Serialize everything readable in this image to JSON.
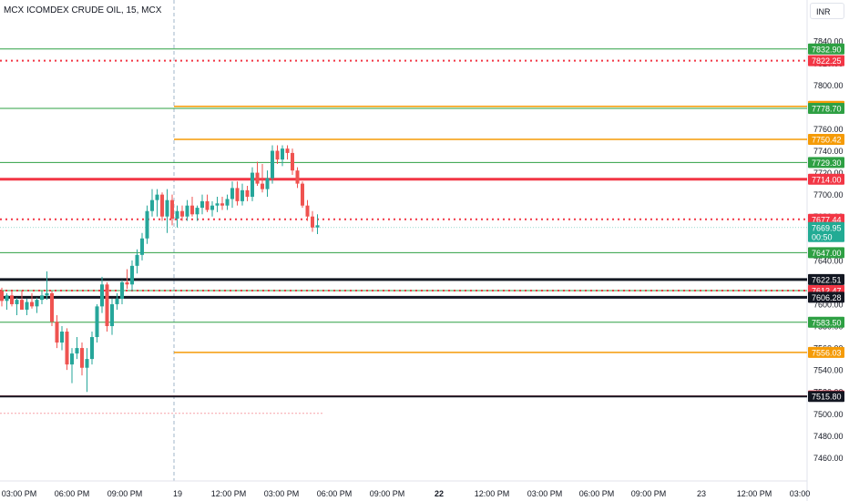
{
  "header": {
    "title": "MCX ICOMDEX CRUDE OIL, 15, MCX",
    "currency": "INR"
  },
  "colors": {
    "green": "#2ea043",
    "red": "#f23645",
    "orange": "#f59b07",
    "black": "#131722",
    "teal": "#22ab94",
    "up_candle": "#26a69a",
    "down_candle": "#ef5350",
    "axis_text": "#131722"
  },
  "chart_data": {
    "type": "candlestick",
    "ylim": [
      7452,
      7846
    ],
    "y_ticks": [
      "7840.00",
      "7820.00",
      "7800.00",
      "7780.00",
      "7760.00",
      "7740.00",
      "7720.00",
      "7700.00",
      "7680.00",
      "7660.00",
      "7640.00",
      "7620.00",
      "7600.00",
      "7580.00",
      "7560.00",
      "7540.00",
      "7520.00",
      "7500.00",
      "7480.00",
      "7460.00"
    ],
    "x_ticks": [
      {
        "label": "03:00 PM",
        "bold": false
      },
      {
        "label": "06:00 PM",
        "bold": false
      },
      {
        "label": "09:00 PM",
        "bold": false
      },
      {
        "label": "19",
        "bold": false
      },
      {
        "label": "12:00 PM",
        "bold": false
      },
      {
        "label": "03:00 PM",
        "bold": false
      },
      {
        "label": "06:00 PM",
        "bold": false
      },
      {
        "label": "09:00 PM",
        "bold": false
      },
      {
        "label": "22",
        "bold": true
      },
      {
        "label": "12:00 PM",
        "bold": false
      },
      {
        "label": "03:00 PM",
        "bold": false
      },
      {
        "label": "06:00 PM",
        "bold": false
      },
      {
        "label": "09:00 PM",
        "bold": false
      },
      {
        "label": "23",
        "bold": false
      },
      {
        "label": "12:00 PM",
        "bold": false
      },
      {
        "label": "03:00",
        "bold": false
      }
    ],
    "levels": [
      {
        "price": 7832.9,
        "label": "7832.90",
        "color": "green",
        "style": "solid",
        "width": 1,
        "start": "full"
      },
      {
        "price": 7822.25,
        "label": "7822.25",
        "color": "red",
        "style": "dotted",
        "width": 2,
        "start": "full"
      },
      {
        "price": 7780.52,
        "label": "7780.52",
        "color": "orange",
        "style": "solid",
        "width": 1.5,
        "start": "day19"
      },
      {
        "price": 7778.7,
        "label": "7778.70",
        "color": "green",
        "style": "solid",
        "width": 1,
        "start": "full"
      },
      {
        "price": 7750.42,
        "label": "7750.42",
        "color": "orange",
        "style": "solid",
        "width": 1.5,
        "start": "day19"
      },
      {
        "price": 7729.3,
        "label": "7729.30",
        "color": "green",
        "style": "solid",
        "width": 1,
        "start": "full"
      },
      {
        "price": 7714.0,
        "label": "7714.00",
        "color": "red",
        "style": "solid",
        "width": 3,
        "start": "full"
      },
      {
        "price": 7677.44,
        "label": "7677.44",
        "color": "red",
        "style": "dotted",
        "width": 2,
        "start": "full"
      },
      {
        "price": 7647.0,
        "label": "7647.00",
        "color": "green",
        "style": "solid",
        "width": 1,
        "start": "full"
      },
      {
        "price": 7622.51,
        "label": "7622.51",
        "color": "black",
        "style": "solid",
        "width": 3,
        "start": "full"
      },
      {
        "price": 7612.47,
        "label": "7612.47",
        "color": "green",
        "style": "solid",
        "width": 1,
        "start": "full"
      },
      {
        "price": 7612.47,
        "label": "7612.47",
        "color": "red",
        "style": "dotted",
        "width": 2,
        "start": "full"
      },
      {
        "price": 7606.28,
        "label": "7606.28",
        "color": "black",
        "style": "solid",
        "width": 3,
        "start": "full"
      },
      {
        "price": 7583.5,
        "label": "7583.50",
        "color": "green",
        "style": "solid",
        "width": 1,
        "start": "full"
      },
      {
        "price": 7556.03,
        "label": "7556.03",
        "color": "orange",
        "style": "solid",
        "width": 1.5,
        "start": "day19"
      },
      {
        "price": 7516.36,
        "label": "7516.36",
        "color": "red",
        "style": "solid",
        "width": 1,
        "start": "full"
      },
      {
        "price": 7515.8,
        "label": "7515.80",
        "color": "black",
        "style": "solid",
        "width": 2,
        "start": "full"
      }
    ],
    "last_price": {
      "label": "7669.95",
      "countdown": "00:50",
      "price": 7669.95
    },
    "candles": [
      [
        7612,
        7615,
        7598,
        7603
      ],
      [
        7603,
        7610,
        7595,
        7608
      ],
      [
        7608,
        7612,
        7598,
        7600
      ],
      [
        7600,
        7606,
        7590,
        7604
      ],
      [
        7604,
        7612,
        7598,
        7595
      ],
      [
        7595,
        7605,
        7590,
        7602
      ],
      [
        7602,
        7610,
        7596,
        7598
      ],
      [
        7598,
        7606,
        7592,
        7604
      ],
      [
        7604,
        7612,
        7600,
        7608
      ],
      [
        7608,
        7630,
        7604,
        7610
      ],
      [
        7610,
        7612,
        7580,
        7584
      ],
      [
        7584,
        7590,
        7560,
        7565
      ],
      [
        7565,
        7580,
        7558,
        7575
      ],
      [
        7575,
        7578,
        7540,
        7545
      ],
      [
        7545,
        7560,
        7528,
        7555
      ],
      [
        7555,
        7570,
        7550,
        7560
      ],
      [
        7560,
        7565,
        7535,
        7542
      ],
      [
        7542,
        7560,
        7520,
        7550
      ],
      [
        7550,
        7575,
        7545,
        7570
      ],
      [
        7570,
        7600,
        7565,
        7598
      ],
      [
        7598,
        7625,
        7592,
        7618
      ],
      [
        7618,
        7620,
        7575,
        7580
      ],
      [
        7580,
        7605,
        7572,
        7600
      ],
      [
        7600,
        7610,
        7595,
        7605
      ],
      [
        7605,
        7622,
        7600,
        7620
      ],
      [
        7620,
        7632,
        7614,
        7618
      ],
      [
        7618,
        7640,
        7612,
        7635
      ],
      [
        7635,
        7650,
        7628,
        7645
      ],
      [
        7645,
        7665,
        7640,
        7660
      ],
      [
        7660,
        7690,
        7655,
        7685
      ],
      [
        7685,
        7705,
        7680,
        7695
      ],
      [
        7695,
        7705,
        7680,
        7700
      ],
      [
        7700,
        7702,
        7676,
        7680
      ],
      [
        7680,
        7705,
        7665,
        7695
      ],
      [
        7695,
        7700,
        7672,
        7678
      ],
      [
        7678,
        7690,
        7670,
        7685
      ],
      [
        7685,
        7690,
        7676,
        7680
      ],
      [
        7680,
        7695,
        7676,
        7690
      ],
      [
        7690,
        7698,
        7680,
        7682
      ],
      [
        7682,
        7690,
        7676,
        7688
      ],
      [
        7688,
        7700,
        7682,
        7694
      ],
      [
        7694,
        7700,
        7684,
        7686
      ],
      [
        7686,
        7694,
        7680,
        7690
      ],
      [
        7690,
        7698,
        7684,
        7692
      ],
      [
        7692,
        7698,
        7686,
        7690
      ],
      [
        7690,
        7700,
        7686,
        7696
      ],
      [
        7696,
        7712,
        7688,
        7706
      ],
      [
        7706,
        7712,
        7690,
        7694
      ],
      [
        7694,
        7710,
        7690,
        7704
      ],
      [
        7704,
        7708,
        7694,
        7698
      ],
      [
        7698,
        7725,
        7694,
        7720
      ],
      [
        7720,
        7730,
        7708,
        7710
      ],
      [
        7710,
        7728,
        7702,
        7705
      ],
      [
        7705,
        7722,
        7698,
        7715
      ],
      [
        7715,
        7745,
        7710,
        7740
      ],
      [
        7740,
        7745,
        7728,
        7732
      ],
      [
        7732,
        7745,
        7726,
        7742
      ],
      [
        7742,
        7745,
        7732,
        7738
      ],
      [
        7738,
        7742,
        7718,
        7722
      ],
      [
        7722,
        7725,
        7706,
        7710
      ],
      [
        7710,
        7712,
        7688,
        7690
      ],
      [
        7690,
        7695,
        7676,
        7680
      ],
      [
        7680,
        7685,
        7666,
        7670
      ],
      [
        7670,
        7682,
        7664,
        7672
      ]
    ]
  }
}
